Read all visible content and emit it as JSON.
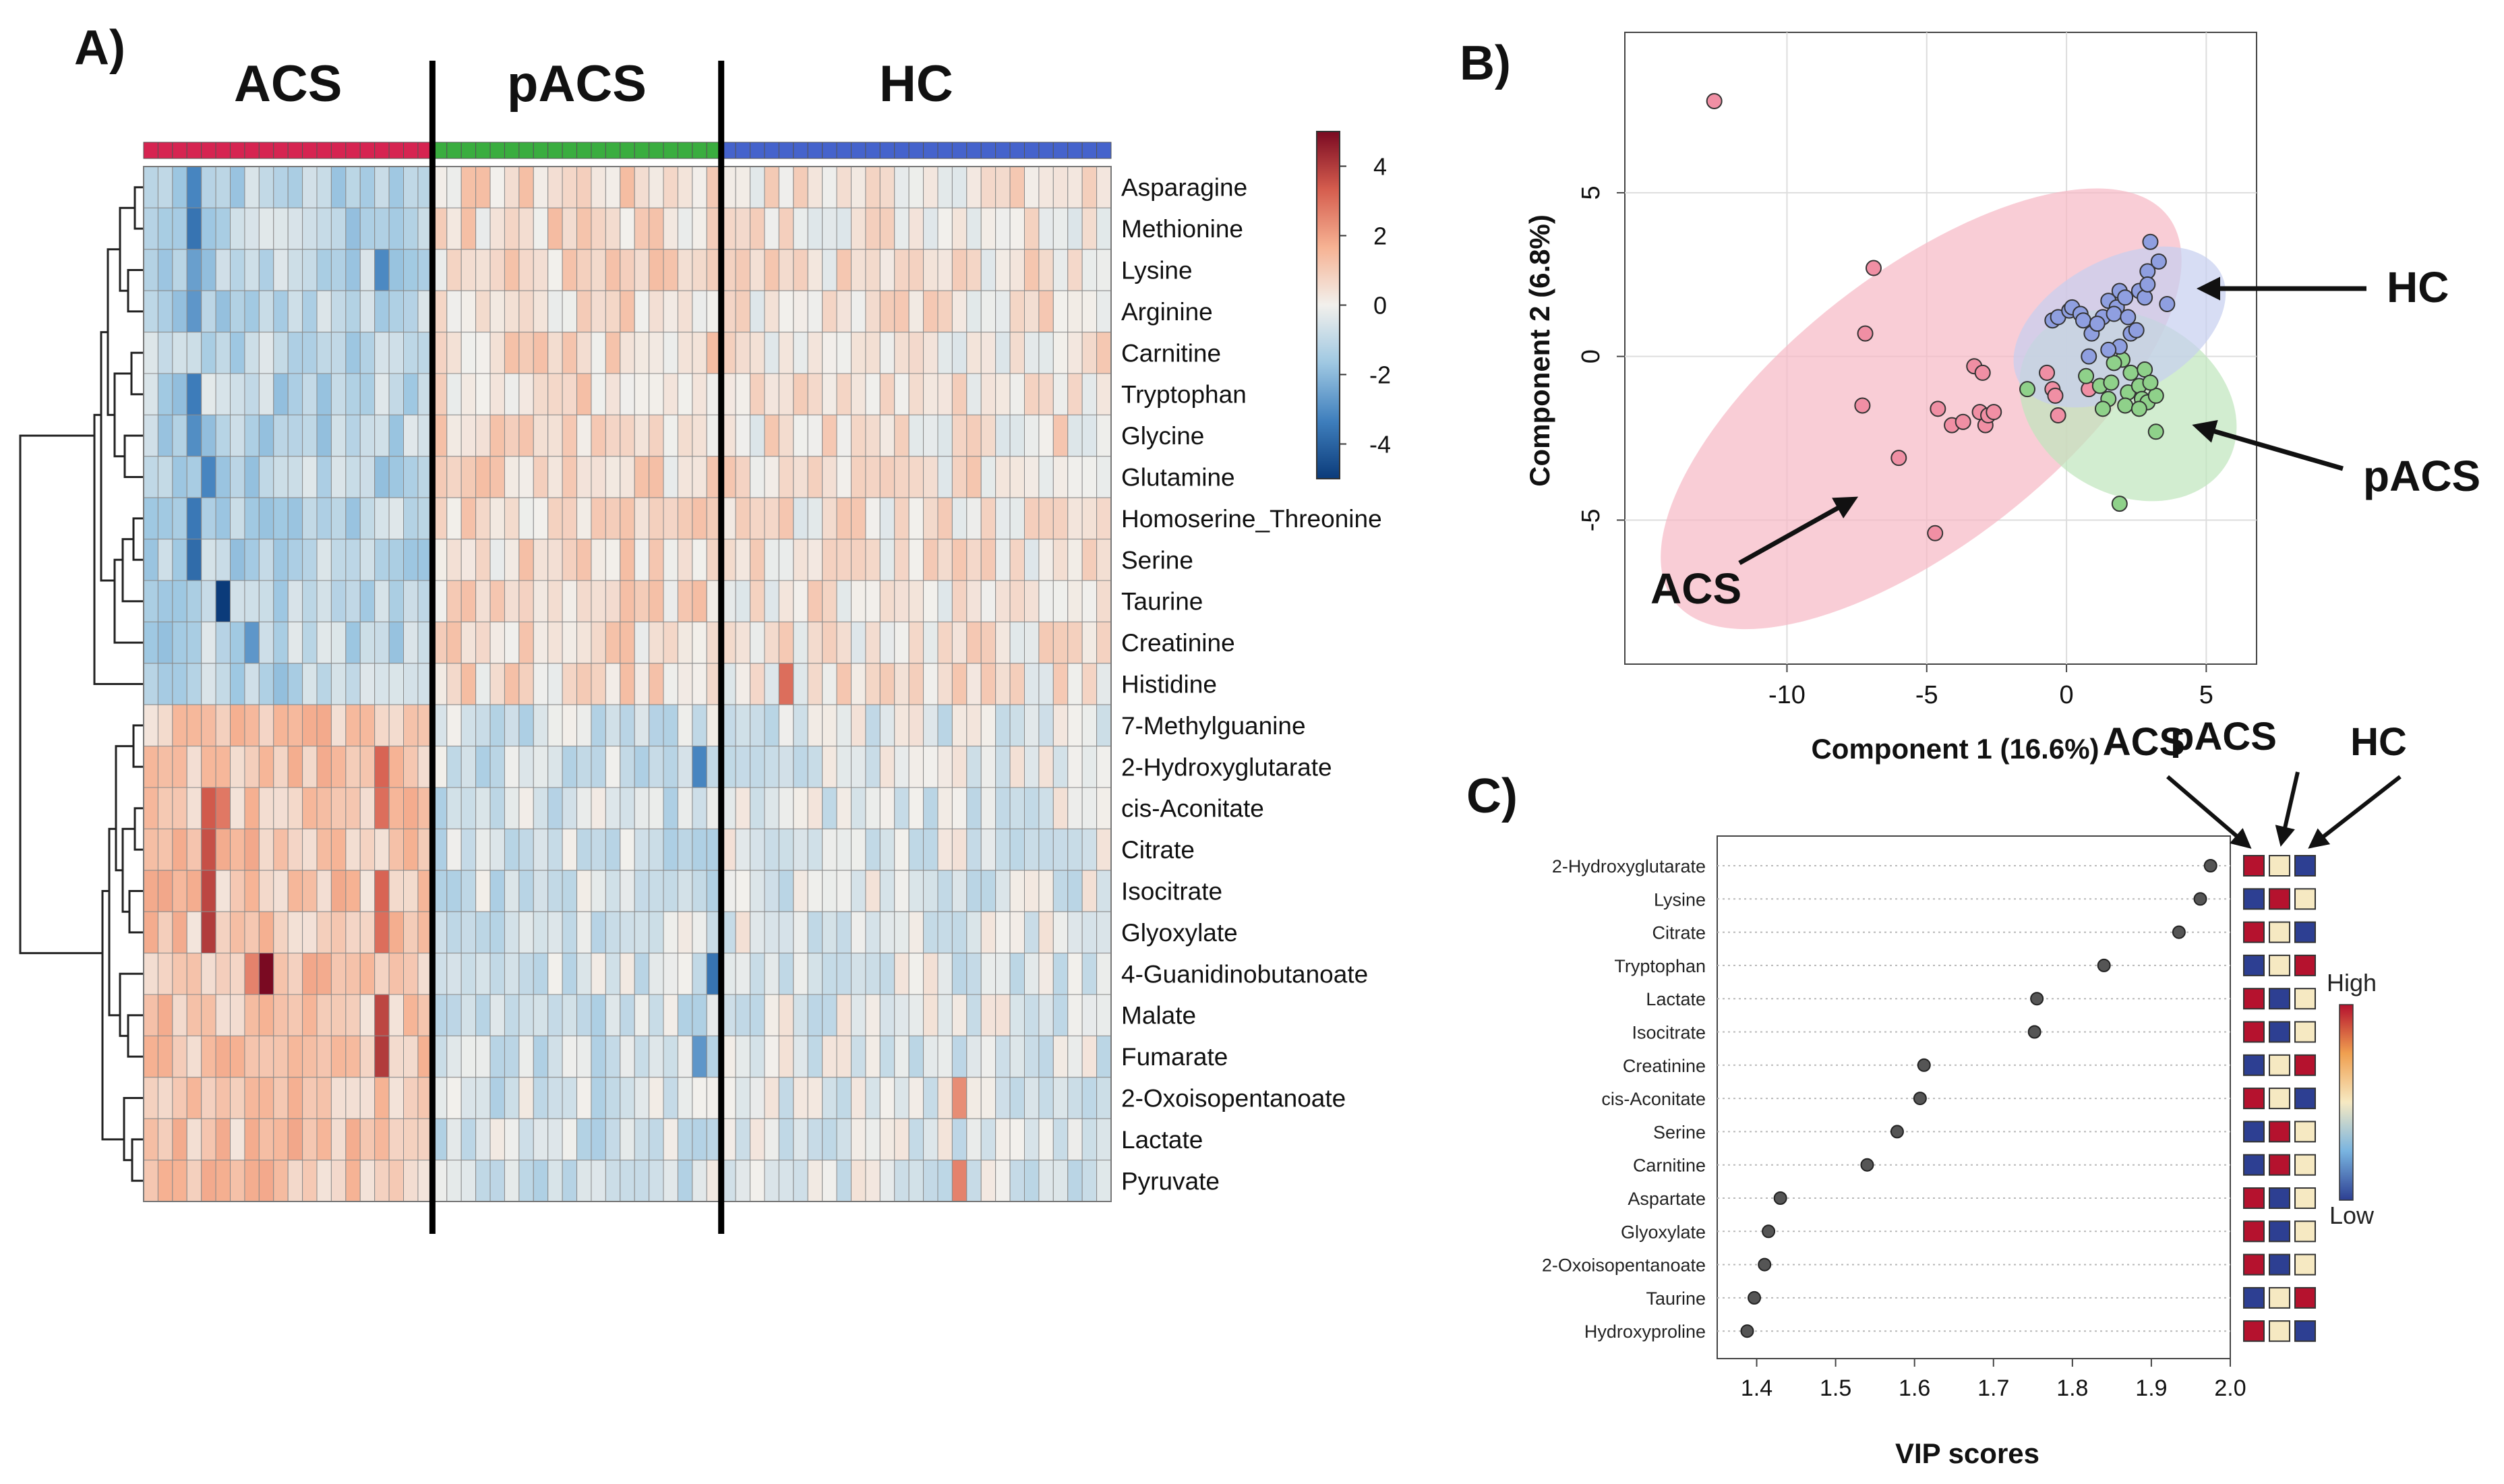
{
  "panels": {
    "a": "A)",
    "b": "B)",
    "c": "C)"
  },
  "chart_data": [
    {
      "type": "heatmap",
      "panel": "A)",
      "groups": [
        {
          "name": "ACS",
          "color": "#d62451",
          "samples": 20
        },
        {
          "name": "pACS",
          "color": "#3aad3f",
          "samples": 20
        },
        {
          "name": "HC",
          "color": "#4563cc",
          "samples": 27
        }
      ],
      "rows": [
        "Asparagine",
        "Methionine",
        "Lysine",
        "Arginine",
        "Carnitine",
        "Tryptophan",
        "Glycine",
        "Glutamine",
        "Homoserine_Threonine",
        "Serine",
        "Taurine",
        "Creatinine",
        "Histidine",
        "7-Methylguanine",
        "2-Hydroxyglutarate",
        "cis-Aconitate",
        "Citrate",
        "Isocitrate",
        "Glyoxylate",
        "4-Guanidinobutanoate",
        "Malate",
        "Fumarate",
        "2-Oxoisopentanoate",
        "Lactate",
        "Pyruvate"
      ],
      "row_group_pattern": [
        -1,
        -1,
        -1,
        -1,
        -1,
        -1,
        -1,
        -1,
        -1,
        -1,
        -1,
        -1,
        -1,
        1,
        1,
        1,
        1,
        1,
        1,
        1,
        1,
        1,
        1,
        1,
        1
      ],
      "legend": {
        "ticks": [
          "4",
          "2",
          "0",
          "-2",
          "-4"
        ],
        "range": [
          -5,
          5
        ],
        "colors": [
          "#0b3b7a",
          "#3f7fbd",
          "#9fc8e2",
          "#f2f0ec",
          "#f6b293",
          "#d55d4e",
          "#7a0a22"
        ]
      },
      "strong_cells": [
        {
          "row": 0,
          "col": 3,
          "value": -3.2
        },
        {
          "row": 1,
          "col": 3,
          "value": -3.6
        },
        {
          "row": 2,
          "col": 3,
          "value": -2.6
        },
        {
          "row": 2,
          "col": 16,
          "value": -3.1
        },
        {
          "row": 3,
          "col": 3,
          "value": -2.8
        },
        {
          "row": 5,
          "col": 3,
          "value": -3.4
        },
        {
          "row": 6,
          "col": 3,
          "value": -3.0
        },
        {
          "row": 7,
          "col": 4,
          "value": -3.2
        },
        {
          "row": 8,
          "col": 3,
          "value": -3.5
        },
        {
          "row": 9,
          "col": 3,
          "value": -3.8
        },
        {
          "row": 10,
          "col": 5,
          "value": -5.0
        },
        {
          "row": 11,
          "col": 7,
          "value": -2.8
        },
        {
          "row": 12,
          "col": 44,
          "value": 3.0
        },
        {
          "row": 14,
          "col": 16,
          "value": 3.2
        },
        {
          "row": 14,
          "col": 38,
          "value": -3.2
        },
        {
          "row": 15,
          "col": 4,
          "value": 3.4
        },
        {
          "row": 15,
          "col": 5,
          "value": 2.8
        },
        {
          "row": 15,
          "col": 16,
          "value": 3.0
        },
        {
          "row": 16,
          "col": 4,
          "value": 3.6
        },
        {
          "row": 17,
          "col": 4,
          "value": 3.8
        },
        {
          "row": 17,
          "col": 16,
          "value": 3.2
        },
        {
          "row": 18,
          "col": 4,
          "value": 4.0
        },
        {
          "row": 18,
          "col": 16,
          "value": 3.0
        },
        {
          "row": 19,
          "col": 8,
          "value": 5.0
        },
        {
          "row": 19,
          "col": 7,
          "value": 2.6
        },
        {
          "row": 19,
          "col": 39,
          "value": -3.6
        },
        {
          "row": 20,
          "col": 16,
          "value": 3.8
        },
        {
          "row": 21,
          "col": 16,
          "value": 4.0
        },
        {
          "row": 21,
          "col": 38,
          "value": -2.8
        },
        {
          "row": 22,
          "col": 56,
          "value": 2.4
        },
        {
          "row": 24,
          "col": 56,
          "value": 2.6
        }
      ]
    },
    {
      "type": "scatter",
      "panel": "B)",
      "xlabel": "Component 1 (16.6%)",
      "ylabel": "Component 2 (6.8%)",
      "xlim": [
        -15.8,
        6.8
      ],
      "ylim": [
        -9.4,
        9.9
      ],
      "xticks": [
        -10,
        -5,
        0,
        5
      ],
      "yticks": [
        -5,
        0,
        5
      ],
      "series": [
        {
          "name": "ACS",
          "color": "#f08fa4",
          "ellipse_fill": "#f7b8c4",
          "ellipse": {
            "cx": -5.2,
            "cy": -1.6,
            "rx": 11.2,
            "ry": 4.6,
            "angle_deg": 38
          },
          "points": [
            [
              -12.6,
              7.8
            ],
            [
              -6.9,
              2.7
            ],
            [
              -7.2,
              0.7
            ],
            [
              -7.3,
              -1.5
            ],
            [
              -6.0,
              -3.1
            ],
            [
              -4.7,
              -5.4
            ],
            [
              -4.6,
              -1.6
            ],
            [
              -4.1,
              -2.1
            ],
            [
              -3.7,
              -2.0
            ],
            [
              -2.9,
              -2.1
            ],
            [
              -3.1,
              -1.7
            ],
            [
              -2.8,
              -1.8
            ],
            [
              -2.6,
              -1.7
            ],
            [
              -3.3,
              -0.3
            ],
            [
              -3.0,
              -0.5
            ],
            [
              -0.7,
              -0.5
            ],
            [
              -0.5,
              -1.0
            ],
            [
              -0.4,
              -1.2
            ],
            [
              -0.3,
              -1.8
            ],
            [
              0.8,
              -1.0
            ]
          ]
        },
        {
          "name": "pACS",
          "color": "#8fd18a",
          "ellipse_fill": "#bfe6bc",
          "ellipse": {
            "cx": 2.2,
            "cy": -1.5,
            "rx": 4.1,
            "ry": 3.0,
            "angle_deg": -30
          },
          "points": [
            [
              -1.4,
              -1.0
            ],
            [
              0.7,
              -0.6
            ],
            [
              1.2,
              -0.9
            ],
            [
              1.6,
              -0.8
            ],
            [
              1.5,
              -1.3
            ],
            [
              2.2,
              -1.1
            ],
            [
              2.6,
              -0.9
            ],
            [
              2.7,
              -1.3
            ],
            [
              2.9,
              -1.4
            ],
            [
              3.2,
              -1.2
            ],
            [
              1.3,
              -1.6
            ],
            [
              2.1,
              -1.5
            ],
            [
              2.6,
              -1.6
            ],
            [
              3.2,
              -2.3
            ],
            [
              1.9,
              -4.5
            ],
            [
              2.3,
              -0.5
            ],
            [
              2.8,
              -0.4
            ],
            [
              3.0,
              -0.8
            ],
            [
              2.0,
              -0.1
            ],
            [
              1.7,
              -0.2
            ]
          ]
        },
        {
          "name": "HC",
          "color": "#8f9fe0",
          "ellipse_fill": "#c6cff0",
          "ellipse": {
            "cx": 1.9,
            "cy": 0.9,
            "rx": 4.1,
            "ry": 2.3,
            "angle_deg": 28
          },
          "points": [
            [
              -0.5,
              1.1
            ],
            [
              -0.3,
              1.2
            ],
            [
              0.1,
              1.4
            ],
            [
              0.2,
              1.5
            ],
            [
              0.5,
              1.3
            ],
            [
              0.6,
              1.1
            ],
            [
              0.9,
              0.7
            ],
            [
              1.3,
              1.2
            ],
            [
              1.5,
              1.7
            ],
            [
              1.8,
              1.5
            ],
            [
              1.9,
              2.0
            ],
            [
              2.1,
              1.8
            ],
            [
              2.6,
              2.0
            ],
            [
              2.8,
              1.8
            ],
            [
              3.0,
              3.5
            ],
            [
              2.9,
              2.6
            ],
            [
              3.3,
              2.9
            ],
            [
              3.6,
              1.6
            ],
            [
              2.9,
              2.2
            ],
            [
              1.7,
              1.3
            ],
            [
              1.9,
              0.3
            ],
            [
              2.3,
              0.7
            ],
            [
              1.5,
              0.2
            ],
            [
              0.8,
              0.0
            ],
            [
              2.5,
              0.8
            ],
            [
              1.1,
              1.0
            ],
            [
              2.2,
              1.2
            ]
          ]
        }
      ],
      "annotations": [
        "ACS",
        "pACS",
        "HC"
      ]
    },
    {
      "type": "dot",
      "panel": "C)",
      "xlabel": "VIP scores",
      "xlim": [
        1.35,
        2.0
      ],
      "xticks": [
        "1.4",
        "1.5",
        "1.6",
        "1.7",
        "1.8",
        "1.9",
        "2.0"
      ],
      "categories": [
        "2-Hydroxyglutarate",
        "Lysine",
        "Citrate",
        "Tryptophan",
        "Lactate",
        "Isocitrate",
        "Creatinine",
        "cis-Aconitate",
        "Serine",
        "Carnitine",
        "Aspartate",
        "Glyoxylate",
        "2-Oxoisopentanoate",
        "Taurine",
        "Hydroxyproline"
      ],
      "values": [
        1.975,
        1.962,
        1.935,
        1.84,
        1.755,
        1.752,
        1.612,
        1.607,
        1.578,
        1.54,
        1.43,
        1.415,
        1.41,
        1.397,
        1.388
      ],
      "group_headers": [
        "ACS",
        "pACS",
        "HC"
      ],
      "group_levels": [
        [
          "high",
          "mid",
          "low"
        ],
        [
          "low",
          "high",
          "mid"
        ],
        [
          "high",
          "mid",
          "low"
        ],
        [
          "low",
          "mid",
          "high"
        ],
        [
          "high",
          "low",
          "mid"
        ],
        [
          "high",
          "low",
          "mid"
        ],
        [
          "low",
          "mid",
          "high"
        ],
        [
          "high",
          "mid",
          "low"
        ],
        [
          "low",
          "high",
          "mid"
        ],
        [
          "low",
          "high",
          "mid"
        ],
        [
          "high",
          "low",
          "mid"
        ],
        [
          "high",
          "low",
          "mid"
        ],
        [
          "high",
          "low",
          "mid"
        ],
        [
          "low",
          "mid",
          "high"
        ],
        [
          "high",
          "mid",
          "low"
        ]
      ],
      "level_colors": {
        "high": "#b5122e",
        "mid": "#f6e9c2",
        "low": "#2d3f92"
      },
      "legend": {
        "high": "High",
        "low": "Low"
      }
    }
  ]
}
